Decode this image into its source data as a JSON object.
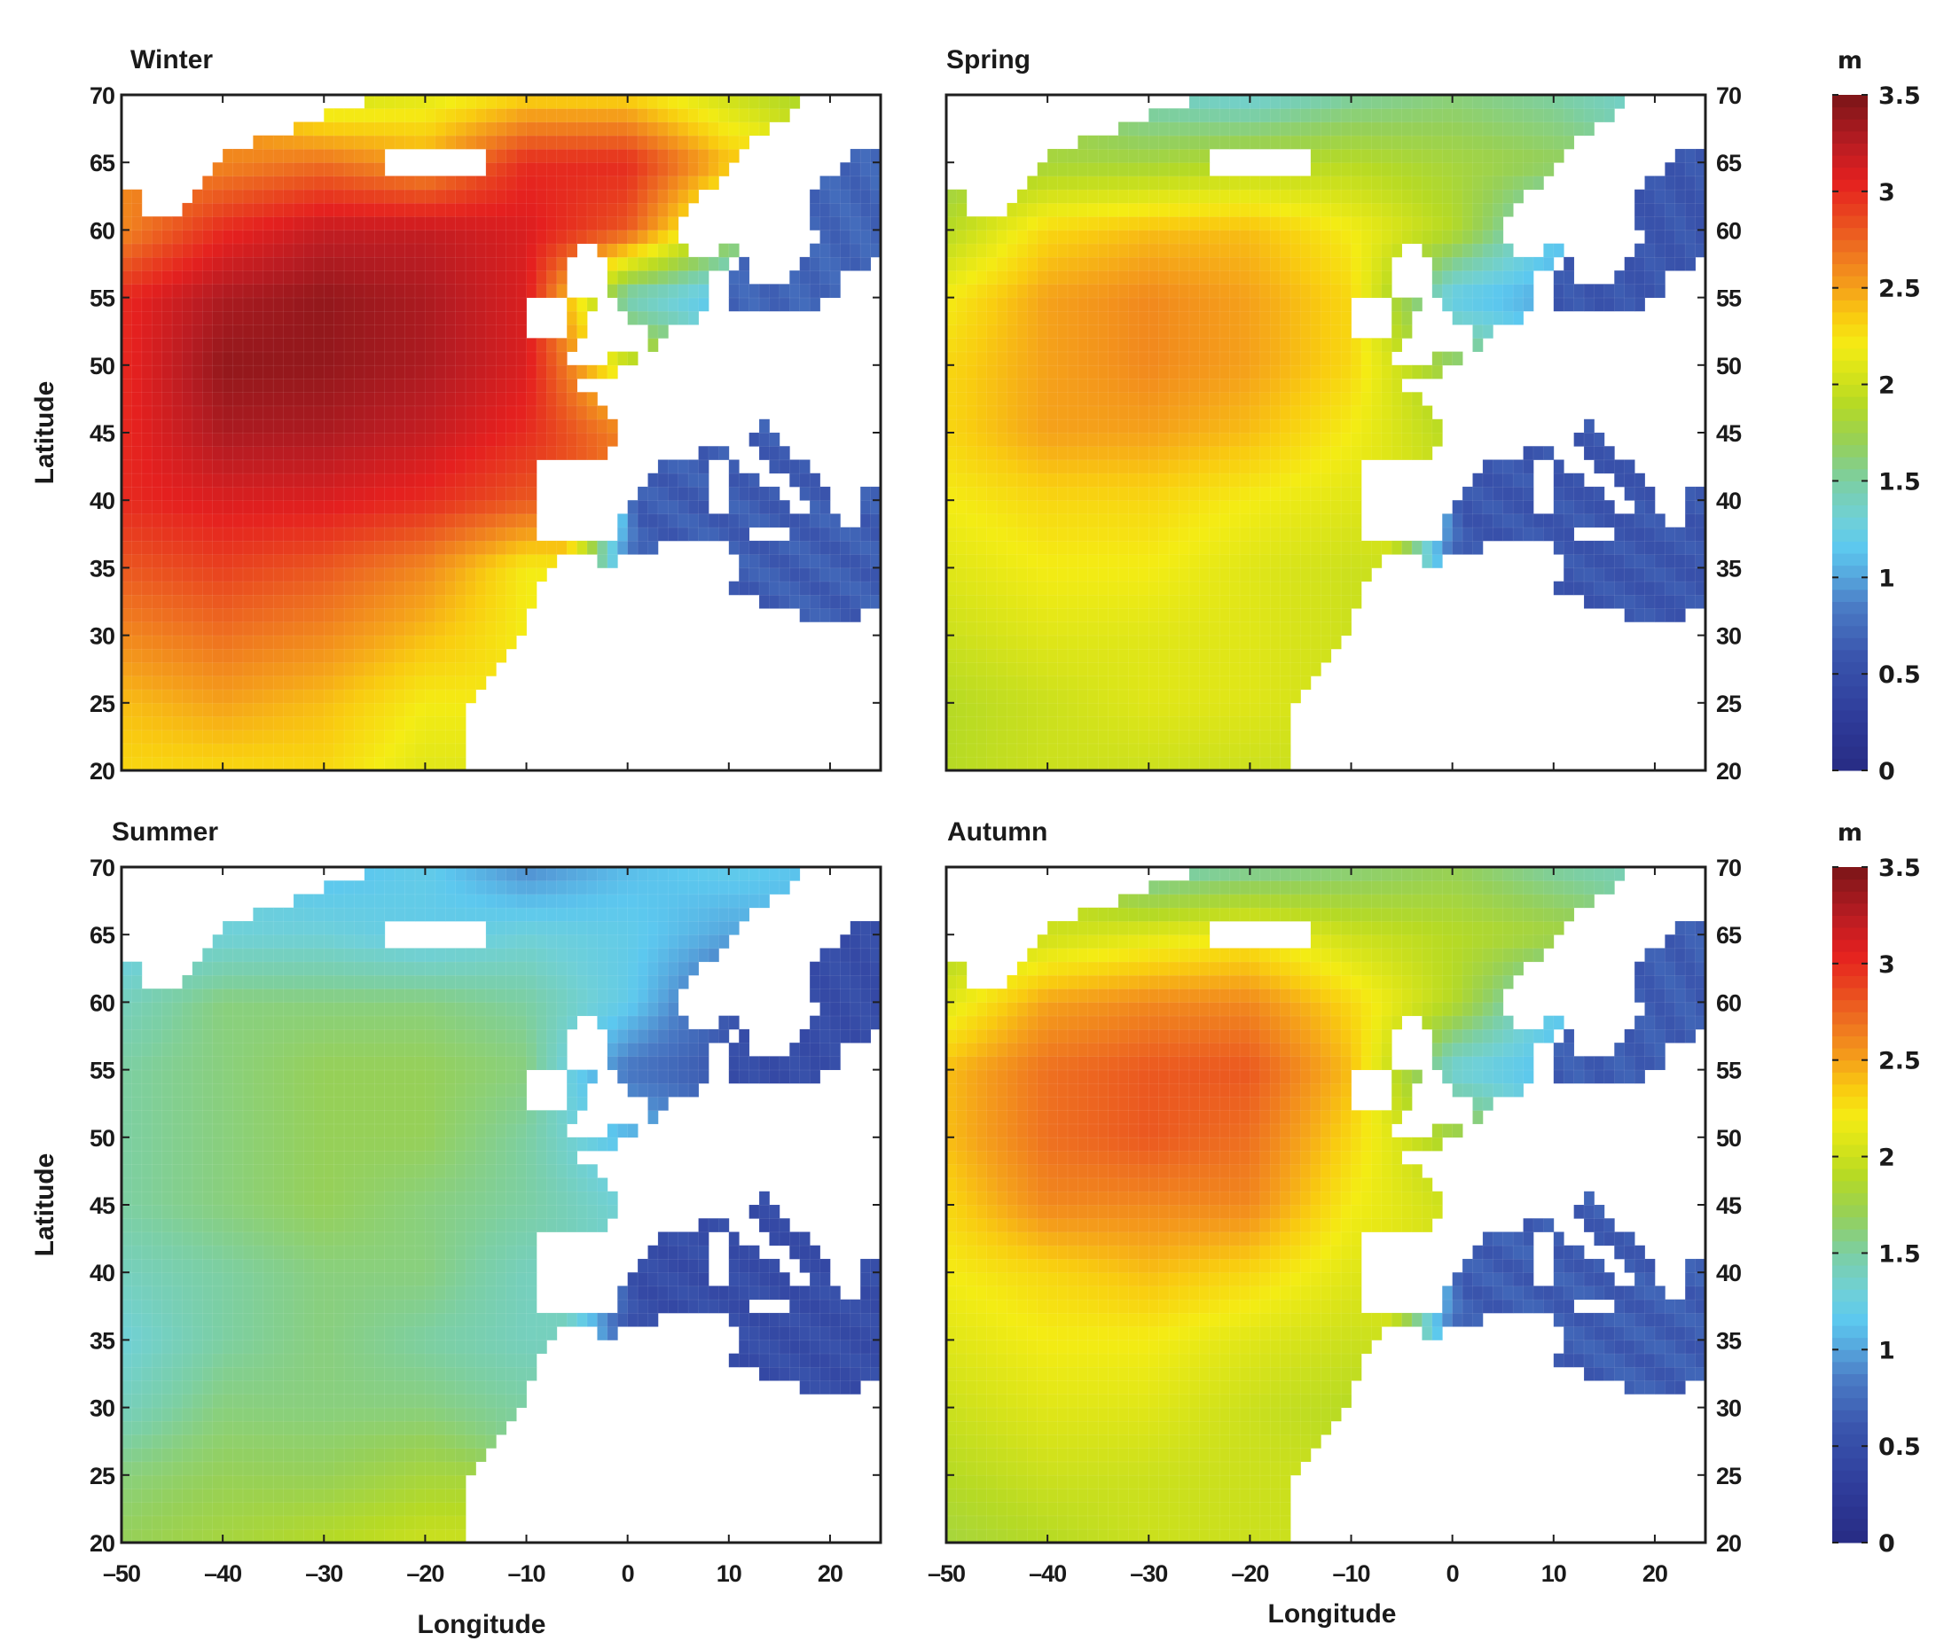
{
  "figure": {
    "colorbars": [
      {
        "label": "m",
        "range": [
          0,
          3.5
        ],
        "ticks": [
          0,
          0.5,
          1,
          1.5,
          2,
          2.5,
          3,
          3.5
        ],
        "tick_labels": [
          "0",
          "0.5",
          "1",
          "1.5",
          "2",
          "2.5",
          "3",
          "3.5"
        ]
      },
      {
        "label": "m",
        "range": [
          0,
          3.5
        ],
        "ticks": [
          0,
          0.5,
          1,
          1.5,
          2,
          2.5,
          3,
          3.5
        ],
        "tick_labels": [
          "0",
          "0.5",
          "1",
          "1.5",
          "2",
          "2.5",
          "3",
          "3.5"
        ]
      }
    ],
    "colormap": [
      [
        0.0,
        "#272b83"
      ],
      [
        0.3,
        "#2f3d9c"
      ],
      [
        0.6,
        "#3a55ad"
      ],
      [
        0.85,
        "#4a7cc6"
      ],
      [
        1.0,
        "#56a4dc"
      ],
      [
        1.15,
        "#5cc8ef"
      ],
      [
        1.3,
        "#6fd0d8"
      ],
      [
        1.5,
        "#7ccfa3"
      ],
      [
        1.7,
        "#96d058"
      ],
      [
        1.9,
        "#b6da24"
      ],
      [
        2.05,
        "#d6e31a"
      ],
      [
        2.2,
        "#f4ec14"
      ],
      [
        2.35,
        "#f9cc10"
      ],
      [
        2.5,
        "#f5a11a"
      ],
      [
        2.7,
        "#ee7020"
      ],
      [
        2.9,
        "#e8401f"
      ],
      [
        3.05,
        "#e5201f"
      ],
      [
        3.25,
        "#b81c22"
      ],
      [
        3.5,
        "#7a1518"
      ]
    ]
  },
  "map": {
    "cell_size_deg": 1,
    "grid_lon": [
      -50,
      -40,
      -30,
      -20,
      -10,
      0,
      10,
      20
    ],
    "grid_lat": [
      70,
      65,
      60,
      55,
      50,
      45,
      40,
      35,
      30,
      25,
      20
    ],
    "ocean_polygons": {
      "atlantic": [
        [
          -50,
          20
        ],
        [
          -50,
          63
        ],
        [
          -47.5,
          63
        ],
        [
          -47.5,
          61
        ],
        [
          -44,
          61
        ],
        [
          -43,
          63
        ],
        [
          -41,
          64.5
        ],
        [
          -39,
          66
        ],
        [
          -35,
          67
        ],
        [
          -31,
          68.2
        ],
        [
          -27,
          69.3
        ],
        [
          -25,
          70
        ],
        [
          18,
          70
        ],
        [
          16,
          68.6
        ],
        [
          14.3,
          67.7
        ],
        [
          10.7,
          65.4
        ],
        [
          9,
          63.6
        ],
        [
          7,
          62.2
        ],
        [
          5,
          61
        ],
        [
          5,
          59
        ],
        [
          6.5,
          58
        ],
        [
          8,
          58.2
        ],
        [
          11.3,
          59.2
        ],
        [
          11.5,
          58
        ],
        [
          10.5,
          57.5
        ],
        [
          8.5,
          57
        ],
        [
          8.3,
          55
        ],
        [
          8.5,
          53.7
        ],
        [
          5,
          53.3
        ],
        [
          4,
          51.8
        ],
        [
          2,
          51
        ],
        [
          1,
          50.2
        ],
        [
          -1,
          49.5
        ],
        [
          -2,
          48.7
        ],
        [
          -4.5,
          48.5
        ],
        [
          -2.5,
          47
        ],
        [
          -1.3,
          46
        ],
        [
          -1.3,
          44
        ],
        [
          -2,
          43.4
        ],
        [
          -8.5,
          43.4
        ],
        [
          -9,
          42
        ],
        [
          -9,
          38.5
        ],
        [
          -8.8,
          37
        ],
        [
          -6.5,
          36.8
        ],
        [
          -5.8,
          36
        ],
        [
          -6.2,
          35.8
        ],
        [
          -8.5,
          34
        ],
        [
          -9.5,
          31.5
        ],
        [
          -10.5,
          29.5
        ],
        [
          -12.5,
          27.6
        ],
        [
          -14.5,
          26
        ],
        [
          -15.5,
          24.5
        ],
        [
          -16.2,
          23
        ],
        [
          -16.3,
          20
        ]
      ],
      "mediterranean": [
        [
          -5.8,
          36
        ],
        [
          -2,
          35.2
        ],
        [
          3,
          36.6
        ],
        [
          10,
          37
        ],
        [
          11,
          35
        ],
        [
          10.5,
          33.5
        ],
        [
          15,
          32
        ],
        [
          20,
          30.8
        ],
        [
          25,
          31.8
        ],
        [
          25,
          40.8
        ],
        [
          23,
          40.5
        ],
        [
          22.5,
          38
        ],
        [
          21,
          38.5
        ],
        [
          19.5,
          41.5
        ],
        [
          16,
          43.5
        ],
        [
          13.5,
          45.7
        ],
        [
          12.3,
          44.5
        ],
        [
          14,
          42.5
        ],
        [
          16.5,
          41
        ],
        [
          18.5,
          40
        ],
        [
          17,
          39
        ],
        [
          16,
          38
        ],
        [
          15.5,
          38
        ],
        [
          15.8,
          40
        ],
        [
          13,
          41.2
        ],
        [
          11,
          42.5
        ],
        [
          10,
          44
        ],
        [
          8.5,
          44.4
        ],
        [
          6,
          43
        ],
        [
          3,
          43.5
        ],
        [
          3,
          42
        ],
        [
          0,
          40
        ],
        [
          -0.5,
          38.5
        ],
        [
          -2,
          36.8
        ],
        [
          -5.5,
          36.5
        ]
      ],
      "baltic": [
        [
          10,
          54
        ],
        [
          14,
          53.8
        ],
        [
          19,
          54.3
        ],
        [
          21,
          55.5
        ],
        [
          21,
          57
        ],
        [
          23.5,
          57.3
        ],
        [
          25,
          58.5
        ],
        [
          25,
          66
        ],
        [
          22,
          66
        ],
        [
          21,
          64.5
        ],
        [
          19,
          63.2
        ],
        [
          17.5,
          61.8
        ],
        [
          18.5,
          60.3
        ],
        [
          19,
          59.2
        ],
        [
          16.5,
          57
        ],
        [
          15.8,
          56
        ],
        [
          13,
          55.5
        ],
        [
          12.5,
          56
        ],
        [
          11.5,
          57.8
        ],
        [
          10.6,
          57.6
        ],
        [
          10.5,
          56.5
        ],
        [
          10,
          55.5
        ]
      ]
    },
    "land_polygons": {
      "iceland": [
        [
          -24,
          64
        ],
        [
          -22,
          63.5
        ],
        [
          -14,
          64
        ],
        [
          -13.5,
          65.5
        ],
        [
          -15,
          66.5
        ],
        [
          -18,
          66.5
        ],
        [
          -22.5,
          66.5
        ],
        [
          -24,
          65.5
        ]
      ],
      "great-britain": [
        [
          -5.7,
          50
        ],
        [
          1.6,
          51
        ],
        [
          1.8,
          52.8
        ],
        [
          0,
          53.5
        ],
        [
          -1.5,
          55.5
        ],
        [
          -1.8,
          57.6
        ],
        [
          -3,
          58.7
        ],
        [
          -5,
          58.6
        ],
        [
          -6.3,
          57
        ],
        [
          -5.6,
          55.5
        ],
        [
          -3.2,
          54.5
        ],
        [
          -4.5,
          53.3
        ],
        [
          -4.2,
          52
        ],
        [
          -5.3,
          51.6
        ]
      ],
      "ireland": [
        [
          -10.3,
          51.5
        ],
        [
          -6,
          52
        ],
        [
          -5.6,
          54.5
        ],
        [
          -7.5,
          55.4
        ],
        [
          -10.2,
          54.2
        ]
      ],
      "corsica-sardinia": [
        [
          8.5,
          38.8
        ],
        [
          10,
          38.8
        ],
        [
          10,
          43
        ],
        [
          8.5,
          43
        ]
      ],
      "sicily": [
        [
          12.3,
          37
        ],
        [
          15.6,
          36.6
        ],
        [
          15.6,
          38.3
        ],
        [
          12.3,
          38.2
        ]
      ]
    }
  },
  "chart_data": [
    {
      "type": "heatmap",
      "title": "Winter",
      "xlabel": "",
      "ylabel": "Latitude",
      "xlim": [
        -50,
        25
      ],
      "ylim": [
        20,
        70
      ],
      "xticks": [
        -50,
        -40,
        -30,
        -20,
        -10,
        0,
        10,
        20
      ],
      "xtick_labels": [],
      "yticks": [
        20,
        25,
        30,
        35,
        40,
        45,
        50,
        55,
        60,
        65,
        70
      ],
      "ytick_labels": [
        "20",
        "25",
        "30",
        "35",
        "40",
        "45",
        "50",
        "55",
        "60",
        "65",
        "70"
      ],
      "units": "m",
      "basin_values": {
        "mediterranean": 0.65,
        "baltic": 0.7
      },
      "values": [
        [
          null,
          null,
          2.0,
          2.1,
          2.3,
          2.3,
          2.0,
          1.8
        ],
        [
          2.6,
          2.6,
          2.7,
          2.5,
          3.0,
          3.0,
          2.4,
          null
        ],
        [
          2.6,
          3.0,
          3.2,
          3.2,
          3.1,
          2.8,
          1.8,
          null
        ],
        [
          3.0,
          3.3,
          3.4,
          3.3,
          3.1,
          1.4,
          1.1,
          null
        ],
        [
          3.0,
          3.4,
          3.4,
          3.3,
          3.1,
          2.0,
          null,
          null
        ],
        [
          3.0,
          3.3,
          3.3,
          3.2,
          3.0,
          2.6,
          null,
          null
        ],
        [
          3.0,
          3.1,
          3.1,
          3.0,
          2.8,
          null,
          null,
          null
        ],
        [
          2.8,
          2.9,
          2.8,
          2.6,
          2.2,
          null,
          null,
          null
        ],
        [
          2.6,
          2.7,
          2.6,
          2.4,
          2.2,
          null,
          null,
          null
        ],
        [
          2.4,
          2.5,
          2.4,
          2.2,
          null,
          null,
          null,
          null
        ],
        [
          2.3,
          2.3,
          2.3,
          2.1,
          null,
          null,
          null,
          null
        ]
      ]
    },
    {
      "type": "heatmap",
      "title": "Spring",
      "xlabel": "",
      "ylabel": "",
      "xlim": [
        -50,
        25
      ],
      "ylim": [
        20,
        70
      ],
      "xticks": [
        -50,
        -40,
        -30,
        -20,
        -10,
        0,
        10,
        20
      ],
      "xtick_labels": [],
      "yticks": [
        20,
        25,
        30,
        35,
        40,
        45,
        50,
        55,
        60,
        65,
        70
      ],
      "ytick_labels": [
        "20",
        "25",
        "30",
        "35",
        "40",
        "45",
        "50",
        "55",
        "60",
        "65",
        "70"
      ],
      "units": "m",
      "basin_values": {
        "mediterranean": 0.6,
        "baltic": 0.6
      },
      "values": [
        [
          null,
          null,
          1.4,
          1.3,
          1.5,
          1.6,
          1.5,
          1.3
        ],
        [
          1.7,
          1.8,
          1.8,
          1.9,
          1.9,
          1.8,
          1.7,
          null
        ],
        [
          1.9,
          2.3,
          2.4,
          2.4,
          2.2,
          1.9,
          1.2,
          null
        ],
        [
          2.2,
          2.5,
          2.6,
          2.5,
          2.3,
          1.2,
          1.0,
          null
        ],
        [
          2.3,
          2.5,
          2.6,
          2.5,
          2.3,
          1.7,
          null,
          null
        ],
        [
          2.3,
          2.5,
          2.5,
          2.4,
          2.2,
          1.9,
          null,
          null
        ],
        [
          2.2,
          2.3,
          2.3,
          2.2,
          2.1,
          null,
          null,
          null
        ],
        [
          2.1,
          2.2,
          2.2,
          2.1,
          2.0,
          null,
          null,
          null
        ],
        [
          2.0,
          2.1,
          2.1,
          2.1,
          2.0,
          null,
          null,
          null
        ],
        [
          1.9,
          2.0,
          2.1,
          2.1,
          2.0,
          null,
          null,
          null
        ],
        [
          1.9,
          2.0,
          2.0,
          2.0,
          2.0,
          null,
          null,
          null
        ]
      ]
    },
    {
      "type": "heatmap",
      "title": "Summer",
      "xlabel": "Longitude",
      "ylabel": "Latitude",
      "xlim": [
        -50,
        25
      ],
      "ylim": [
        20,
        70
      ],
      "xticks": [
        -50,
        -40,
        -30,
        -20,
        -10,
        0,
        10,
        20
      ],
      "xtick_labels": [
        "–50",
        "–40",
        "–30",
        "–20",
        "–10",
        "0",
        "10",
        "20"
      ],
      "yticks": [
        20,
        25,
        30,
        35,
        40,
        45,
        50,
        55,
        60,
        65,
        70
      ],
      "ytick_labels": [
        "20",
        "25",
        "30",
        "35",
        "40",
        "45",
        "50",
        "55",
        "60",
        "65",
        "70"
      ],
      "units": "m",
      "basin_values": {
        "mediterranean": 0.5,
        "baltic": 0.5
      },
      "values": [
        [
          null,
          null,
          1.1,
          1.2,
          0.9,
          1.1,
          1.2,
          1.1
        ],
        [
          1.2,
          1.3,
          1.3,
          1.2,
          1.3,
          1.2,
          1.0,
          null
        ],
        [
          1.4,
          1.6,
          1.6,
          1.6,
          1.5,
          1.2,
          0.6,
          null
        ],
        [
          1.5,
          1.6,
          1.7,
          1.7,
          1.6,
          0.8,
          0.6,
          null
        ],
        [
          1.5,
          1.6,
          1.7,
          1.7,
          1.5,
          1.1,
          null,
          null
        ],
        [
          1.5,
          1.6,
          1.7,
          1.6,
          1.5,
          1.3,
          null,
          null
        ],
        [
          1.4,
          1.5,
          1.6,
          1.6,
          1.4,
          null,
          null,
          null
        ],
        [
          1.3,
          1.5,
          1.6,
          1.5,
          1.4,
          null,
          null,
          null
        ],
        [
          1.4,
          1.6,
          1.6,
          1.6,
          1.5,
          null,
          null,
          null
        ],
        [
          1.6,
          1.7,
          1.7,
          1.8,
          null,
          null,
          null,
          null
        ],
        [
          1.7,
          1.8,
          1.9,
          2.0,
          null,
          null,
          null,
          null
        ]
      ]
    },
    {
      "type": "heatmap",
      "title": "Autumn",
      "xlabel": "Longitude",
      "ylabel": "",
      "xlim": [
        -50,
        25
      ],
      "ylim": [
        20,
        70
      ],
      "xticks": [
        -50,
        -40,
        -30,
        -20,
        -10,
        0,
        10,
        20
      ],
      "xtick_labels": [
        "–50",
        "–40",
        "–30",
        "–20",
        "–10",
        "0",
        "10",
        "20"
      ],
      "yticks": [
        20,
        25,
        30,
        35,
        40,
        45,
        50,
        55,
        60,
        65,
        70
      ],
      "ytick_labels": [
        "20",
        "25",
        "30",
        "35",
        "40",
        "45",
        "50",
        "55",
        "60",
        "65",
        "70"
      ],
      "units": "m",
      "basin_values": {
        "mediterranean": 0.65,
        "baltic": 0.65
      },
      "values": [
        [
          null,
          null,
          1.4,
          1.5,
          1.6,
          1.7,
          1.5,
          1.4
        ],
        [
          1.8,
          2.0,
          2.1,
          2.2,
          2.0,
          1.9,
          1.8,
          null
        ],
        [
          2.1,
          2.5,
          2.6,
          2.6,
          2.3,
          1.9,
          1.2,
          null
        ],
        [
          2.4,
          2.7,
          2.8,
          2.8,
          2.4,
          1.3,
          1.1,
          null
        ],
        [
          2.4,
          2.7,
          2.8,
          2.7,
          2.3,
          1.8,
          null,
          null
        ],
        [
          2.3,
          2.6,
          2.6,
          2.6,
          2.2,
          2.0,
          null,
          null
        ],
        [
          2.2,
          2.3,
          2.4,
          2.3,
          2.1,
          null,
          null,
          null
        ],
        [
          2.1,
          2.2,
          2.2,
          2.1,
          2.0,
          null,
          null,
          null
        ],
        [
          2.0,
          2.1,
          2.1,
          2.0,
          1.9,
          null,
          null,
          null
        ],
        [
          1.9,
          2.0,
          2.0,
          2.0,
          null,
          null,
          null,
          null
        ],
        [
          1.8,
          1.9,
          2.0,
          2.0,
          null,
          null,
          null,
          null
        ]
      ]
    }
  ]
}
